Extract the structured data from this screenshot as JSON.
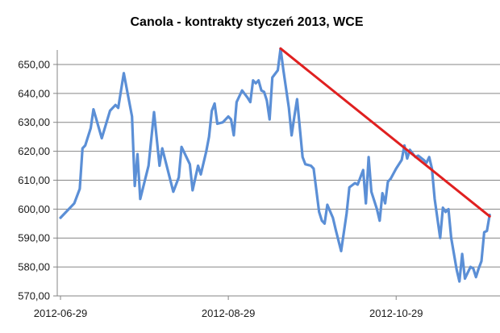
{
  "chart_data": {
    "type": "line",
    "title": "Canola - kontrakty styczeń 2013, WCE",
    "xlabel": "",
    "ylabel": "",
    "ylim": [
      570,
      655
    ],
    "y_ticks": [
      "570,00",
      "580,00",
      "590,00",
      "600,00",
      "610,00",
      "620,00",
      "630,00",
      "640,00",
      "650,00"
    ],
    "x_ticks": [
      "2012-06-29",
      "2012-08-29",
      "2012-10-29"
    ],
    "x_range": [
      "2012-06-29",
      "2012-11-29"
    ],
    "grid": "horizontal",
    "legend": "none",
    "series": [
      {
        "color": "#5b8fd6",
        "points": [
          [
            "2012-06-29",
            597
          ],
          [
            "2012-07-04",
            602
          ],
          [
            "2012-07-06",
            607
          ],
          [
            "2012-07-07",
            621
          ],
          [
            "2012-07-08",
            622
          ],
          [
            "2012-07-10",
            628
          ],
          [
            "2012-07-11",
            634.5
          ],
          [
            "2012-07-14",
            624.5
          ],
          [
            "2012-07-17",
            634
          ],
          [
            "2012-07-19",
            636
          ],
          [
            "2012-07-20",
            635
          ],
          [
            "2012-07-22",
            647
          ],
          [
            "2012-07-25",
            632
          ],
          [
            "2012-07-26",
            608
          ],
          [
            "2012-07-27",
            619
          ],
          [
            "2012-07-28",
            603.5
          ],
          [
            "2012-07-31",
            615
          ],
          [
            "2012-08-02",
            633.5
          ],
          [
            "2012-08-04",
            615
          ],
          [
            "2012-08-05",
            621
          ],
          [
            "2012-08-09",
            606
          ],
          [
            "2012-08-11",
            611
          ],
          [
            "2012-08-12",
            621.5
          ],
          [
            "2012-08-15",
            615.5
          ],
          [
            "2012-08-16",
            606.5
          ],
          [
            "2012-08-18",
            615
          ],
          [
            "2012-08-19",
            612
          ],
          [
            "2012-08-21",
            620
          ],
          [
            "2012-08-22",
            625
          ],
          [
            "2012-08-23",
            634
          ],
          [
            "2012-08-24",
            636.5
          ],
          [
            "2012-08-25",
            629.5
          ],
          [
            "2012-08-27",
            630
          ],
          [
            "2012-08-29",
            632
          ],
          [
            "2012-08-30",
            631
          ],
          [
            "2012-08-31",
            625.5
          ],
          [
            "2012-09-01",
            637
          ],
          [
            "2012-09-03",
            641
          ],
          [
            "2012-09-05",
            638.5
          ],
          [
            "2012-09-06",
            637
          ],
          [
            "2012-09-07",
            644.5
          ],
          [
            "2012-09-08",
            643.5
          ],
          [
            "2012-09-09",
            644.5
          ],
          [
            "2012-09-10",
            641
          ],
          [
            "2012-09-11",
            640.5
          ],
          [
            "2012-09-12",
            637.5
          ],
          [
            "2012-09-13",
            631
          ],
          [
            "2012-09-14",
            645.5
          ],
          [
            "2012-09-16",
            648
          ],
          [
            "2012-09-17",
            655.5
          ],
          [
            "2012-09-18",
            648
          ],
          [
            "2012-09-20",
            635
          ],
          [
            "2012-09-21",
            625.5
          ],
          [
            "2012-09-22",
            632
          ],
          [
            "2012-09-23",
            638
          ],
          [
            "2012-09-25",
            618
          ],
          [
            "2012-09-26",
            615.5
          ],
          [
            "2012-09-28",
            615
          ],
          [
            "2012-09-29",
            614
          ],
          [
            "2012-10-01",
            599
          ],
          [
            "2012-10-02",
            596
          ],
          [
            "2012-10-03",
            595
          ],
          [
            "2012-10-04",
            601.5
          ],
          [
            "2012-10-06",
            597
          ],
          [
            "2012-10-07",
            593
          ],
          [
            "2012-10-09",
            585.5
          ],
          [
            "2012-10-11",
            598.5
          ],
          [
            "2012-10-12",
            607.5
          ],
          [
            "2012-10-14",
            609
          ],
          [
            "2012-10-15",
            608.5
          ],
          [
            "2012-10-16",
            611
          ],
          [
            "2012-10-17",
            613.5
          ],
          [
            "2012-10-18",
            602
          ],
          [
            "2012-10-19",
            618
          ],
          [
            "2012-10-20",
            606
          ],
          [
            "2012-10-22",
            600
          ],
          [
            "2012-10-23",
            596
          ],
          [
            "2012-10-24",
            605.5
          ],
          [
            "2012-10-25",
            602
          ],
          [
            "2012-10-26",
            609.5
          ],
          [
            "2012-10-27",
            610.5
          ],
          [
            "2012-10-29",
            614
          ],
          [
            "2012-10-31",
            617
          ],
          [
            "2012-11-01",
            622
          ],
          [
            "2012-11-02",
            617.5
          ],
          [
            "2012-11-03",
            620.5
          ],
          [
            "2012-11-05",
            618
          ],
          [
            "2012-11-06",
            618.5
          ],
          [
            "2012-11-08",
            617
          ],
          [
            "2012-11-09",
            616
          ],
          [
            "2012-11-10",
            618
          ],
          [
            "2012-11-11",
            614
          ],
          [
            "2012-11-12",
            603.5
          ],
          [
            "2012-11-14",
            590
          ],
          [
            "2012-11-15",
            600.5
          ],
          [
            "2012-11-16",
            599
          ],
          [
            "2012-11-17",
            600
          ],
          [
            "2012-11-18",
            590
          ],
          [
            "2012-11-20",
            579
          ],
          [
            "2012-11-21",
            575
          ],
          [
            "2012-11-22",
            584.5
          ],
          [
            "2012-11-23",
            576
          ],
          [
            "2012-11-25",
            580
          ],
          [
            "2012-11-26",
            579.5
          ],
          [
            "2012-11-27",
            576.5
          ],
          [
            "2012-11-28",
            579.5
          ],
          [
            "2012-11-29",
            582
          ],
          [
            "2012-11-30",
            592
          ],
          [
            "2012-12-01",
            592.5
          ],
          [
            "2012-12-02",
            598
          ]
        ]
      }
    ],
    "trendline": {
      "color": "#e02020",
      "points": [
        [
          "2012-09-17",
          655.5
        ],
        [
          "2012-12-02",
          597.5
        ]
      ]
    }
  }
}
